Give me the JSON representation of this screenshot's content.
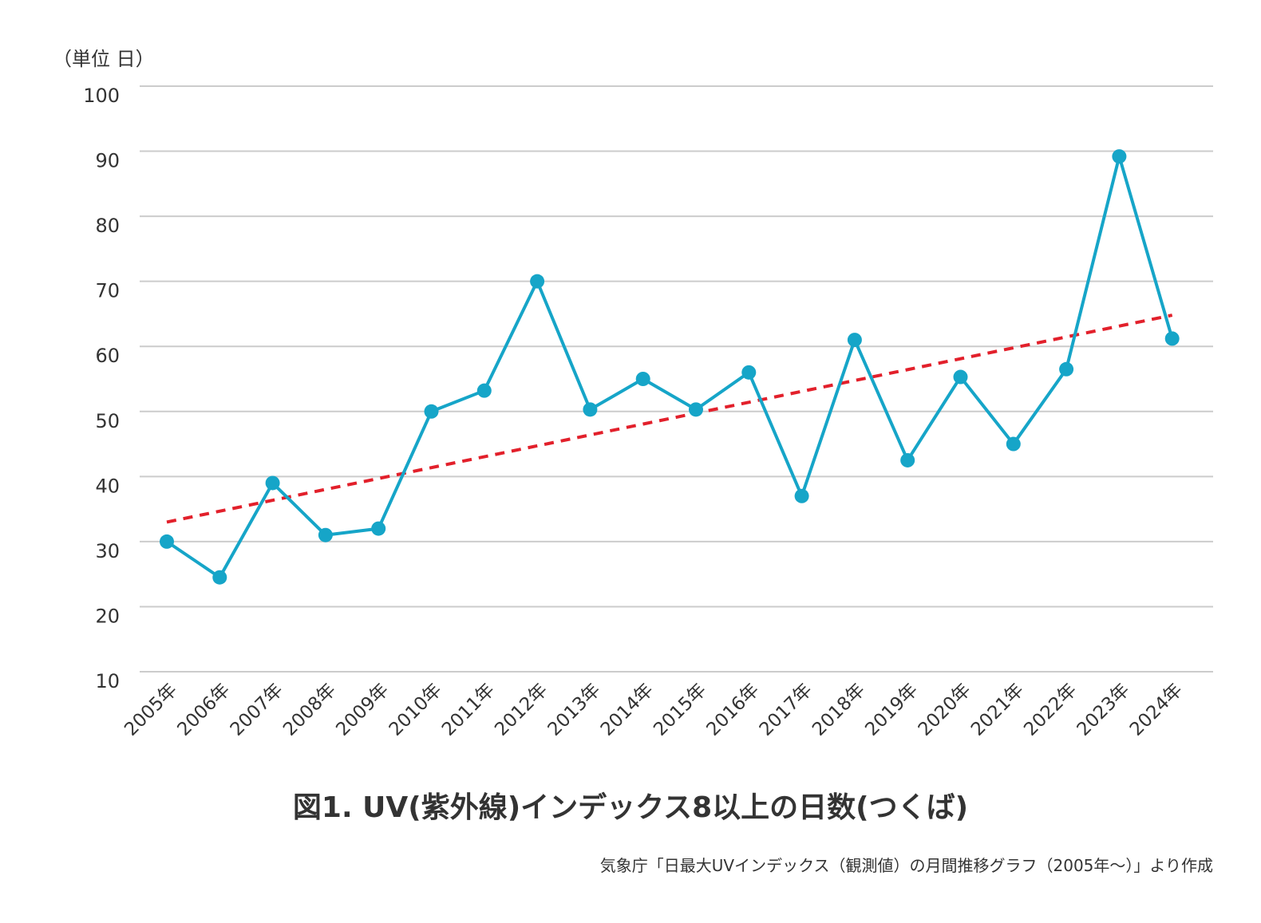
{
  "chart_data": {
    "type": "line",
    "title": "図1. UV(紫外線)インデックス8以上の日数(つくば)",
    "source": "気象庁「日最大UVインデックス（観測値）の月間推移グラフ（2005年～）」より作成",
    "unit_label": "（単位 日）",
    "xlabel": "",
    "ylabel": "",
    "categories": [
      "2005年",
      "2006年",
      "2007年",
      "2008年",
      "2009年",
      "2010年",
      "2011年",
      "2012年",
      "2013年",
      "2014年",
      "2015年",
      "2016年",
      "2017年",
      "2018年",
      "2019年",
      "2020年",
      "2021年",
      "2022年",
      "2023年",
      "2024年"
    ],
    "y_ticks": [
      "10",
      "20",
      "30",
      "40",
      "50",
      "60",
      "70",
      "80",
      "90",
      "100"
    ],
    "ylim": [
      10,
      100
    ],
    "grid": true,
    "legend": "none",
    "series": [
      {
        "values": [
          30,
          24.5,
          39,
          31,
          32,
          50,
          53.2,
          70,
          50.3,
          55,
          50.3,
          56,
          37,
          61,
          42.5,
          55.3,
          45,
          56.5,
          89.2,
          61.2
        ],
        "color": "#16a5c8"
      }
    ],
    "trendline": {
      "style": "dashed",
      "color": "#e2202b",
      "start": 33,
      "end": 64.8
    },
    "colors": {
      "grid": "#cccccc",
      "text": "#333333"
    }
  }
}
